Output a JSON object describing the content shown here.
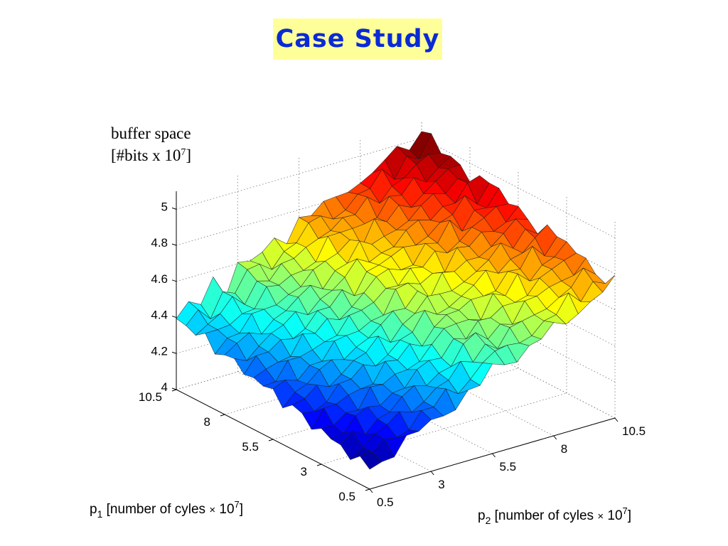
{
  "title": "Case Study",
  "chart_data": {
    "type": "surface",
    "zlabel_line1": "buffer space",
    "zlabel_line2_prefix": "[#bits x 10",
    "zlabel_line2_exp": "7",
    "zlabel_line2_suffix": "]",
    "xlabel_prefix": "p",
    "xlabel_sub": "1",
    "xlabel_text": " [number of cyles ",
    "xlabel_times": "×",
    "xlabel_ten": " 10",
    "xlabel_exp": "7",
    "xlabel_end": "]",
    "ylabel_prefix": "p",
    "ylabel_sub": "2",
    "ylabel_text": " [number of cyles ",
    "ylabel_times": "×",
    "ylabel_ten": " 10",
    "ylabel_exp": "7",
    "ylabel_end": "]",
    "p1_ticks": [
      "10.5",
      "8",
      "5.5",
      "3",
      "0.5"
    ],
    "p2_ticks": [
      "0.5",
      "3",
      "5.5",
      "8",
      "10.5"
    ],
    "z_ticks": [
      "4",
      "4.2",
      "4.4",
      "4.6",
      "4.8",
      "5"
    ],
    "p1_range": [
      0.5,
      10.5
    ],
    "p2_range": [
      0.5,
      10.5
    ],
    "zlim": [
      4.0,
      5.1
    ],
    "colormap": "jet",
    "grid": true,
    "surface_z_corners": {
      "p1_0.5_p2_0.5": 4.11,
      "p1_10.5_p2_0.5": 4.4,
      "p1_0.5_p2_10.5": 4.75,
      "p1_10.5_p2_10.5": 5.02
    }
  }
}
